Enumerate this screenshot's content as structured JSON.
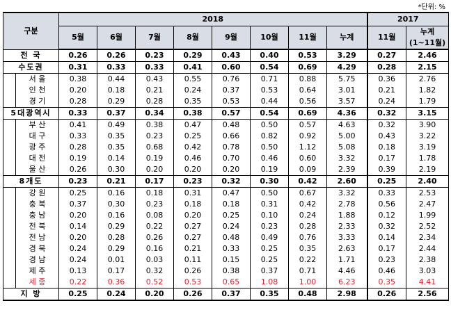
{
  "unit_note": "*단위: %",
  "header": {
    "region": "구분",
    "year_2018": "2018",
    "year_2017": "2017",
    "months": [
      "5월",
      "6월",
      "7월",
      "8월",
      "9월",
      "10월",
      "11월",
      "누계"
    ],
    "months_2017": [
      "11월"
    ],
    "cum_2017_line1": "누계",
    "cum_2017_line2": "(1~11월)"
  },
  "rows": {
    "r0": {
      "label": "전 국",
      "values": [
        "0.26",
        "0.26",
        "0.23",
        "0.29",
        "0.43",
        "0.40",
        "0.53",
        "3.29",
        "0.27",
        "2.46"
      ]
    },
    "r1": {
      "label": "수도권",
      "values": [
        "0.31",
        "0.33",
        "0.33",
        "0.41",
        "0.60",
        "0.54",
        "0.69",
        "4.29",
        "0.28",
        "2.15"
      ]
    },
    "r2": {
      "label": "서 울",
      "values": [
        "0.38",
        "0.44",
        "0.43",
        "0.55",
        "0.76",
        "0.71",
        "0.88",
        "5.75",
        "0.36",
        "2.76"
      ]
    },
    "r3": {
      "label": "인 천",
      "values": [
        "0.20",
        "0.18",
        "0.21",
        "0.24",
        "0.37",
        "0.53",
        "0.64",
        "3.01",
        "0.21",
        "1.82"
      ]
    },
    "r4": {
      "label": "경 기",
      "values": [
        "0.28",
        "0.29",
        "0.28",
        "0.35",
        "0.53",
        "0.44",
        "0.56",
        "3.57",
        "0.24",
        "1.79"
      ]
    },
    "r5": {
      "label": "5대광역시",
      "values": [
        "0.33",
        "0.37",
        "0.34",
        "0.38",
        "0.57",
        "0.54",
        "0.69",
        "4.36",
        "0.32",
        "3.15"
      ]
    },
    "r6": {
      "label": "부 산",
      "values": [
        "0.41",
        "0.49",
        "0.38",
        "0.47",
        "0.48",
        "0.50",
        "0.57",
        "4.63",
        "0.32",
        "3.90"
      ]
    },
    "r7": {
      "label": "대 구",
      "values": [
        "0.33",
        "0.35",
        "0.23",
        "0.25",
        "0.66",
        "0.82",
        "0.92",
        "5.00",
        "0.43",
        "3.22"
      ]
    },
    "r8": {
      "label": "광 주",
      "values": [
        "0.28",
        "0.35",
        "0.68",
        "0.42",
        "0.78",
        "0.50",
        "1.12",
        "5.08",
        "0.18",
        "3.19"
      ]
    },
    "r9": {
      "label": "대 전",
      "values": [
        "0.19",
        "0.14",
        "0.19",
        "0.46",
        "0.70",
        "0.46",
        "0.60",
        "3.32",
        "0.17",
        "1.78"
      ]
    },
    "r10": {
      "label": "울 산",
      "values": [
        "0.26",
        "0.30",
        "0.20",
        "0.20",
        "0.20",
        "0.19",
        "0.09",
        "2.39",
        "0.39",
        "2.19"
      ]
    },
    "r11": {
      "label": "8개도",
      "values": [
        "0.23",
        "0.21",
        "0.17",
        "0.23",
        "0.32",
        "0.30",
        "0.42",
        "2.60",
        "0.25",
        "2.40"
      ]
    },
    "r12": {
      "label": "강 원",
      "values": [
        "0.25",
        "0.16",
        "0.18",
        "0.31",
        "0.47",
        "0.50",
        "0.67",
        "3.32",
        "0.33",
        "2.53"
      ]
    },
    "r13": {
      "label": "충 북",
      "values": [
        "0.37",
        "0.30",
        "0.23",
        "0.18",
        "0.18",
        "0.31",
        "0.42",
        "2.78",
        "0.56",
        "2.47"
      ]
    },
    "r14": {
      "label": "충 남",
      "values": [
        "0.20",
        "0.16",
        "0.08",
        "0.20",
        "0.25",
        "0.10",
        "0.24",
        "1.88",
        "0.12",
        "1.99"
      ]
    },
    "r15": {
      "label": "전 북",
      "values": [
        "0.14",
        "0.29",
        "0.22",
        "0.27",
        "0.24",
        "0.23",
        "0.28",
        "2.33",
        "0.32",
        "2.52"
      ]
    },
    "r16": {
      "label": "전 남",
      "values": [
        "0.20",
        "0.28",
        "0.26",
        "0.27",
        "0.48",
        "0.49",
        "0.76",
        "3.33",
        "0.14",
        "2.34"
      ]
    },
    "r17": {
      "label": "경 북",
      "values": [
        "0.24",
        "0.29",
        "0.16",
        "0.21",
        "0.33",
        "0.25",
        "0.35",
        "2.63",
        "0.17",
        "2.44"
      ]
    },
    "r18": {
      "label": "경 남",
      "values": [
        "0.24",
        "0.01",
        "0.03",
        "0.11",
        "0.15",
        "0.25",
        "0.22",
        "1.71",
        "0.23",
        "2.38"
      ]
    },
    "r19": {
      "label": "제 주",
      "values": [
        "0.13",
        "0.17",
        "0.32",
        "0.26",
        "0.38",
        "0.37",
        "0.71",
        "4.46",
        "0.46",
        "3.03"
      ]
    },
    "r20": {
      "label": "세 종",
      "values": [
        "0.22",
        "0.36",
        "0.52",
        "0.53",
        "0.65",
        "1.08",
        "1.00",
        "6.23",
        "0.35",
        "4.41"
      ]
    },
    "r21": {
      "label": "지 방",
      "values": [
        "0.25",
        "0.24",
        "0.20",
        "0.26",
        "0.37",
        "0.35",
        "0.48",
        "2.98",
        "0.26",
        "2.56"
      ]
    }
  },
  "colors": {
    "header_bg": "#d8dde6",
    "highlight_red": "#e0202a"
  }
}
